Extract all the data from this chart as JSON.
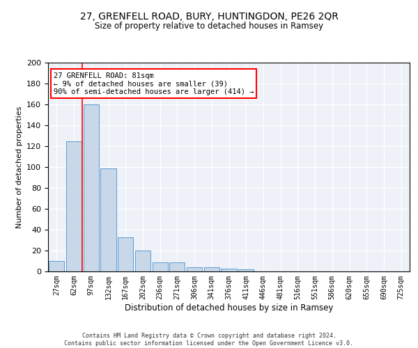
{
  "title1": "27, GRENFELL ROAD, BURY, HUNTINGDON, PE26 2QR",
  "title2": "Size of property relative to detached houses in Ramsey",
  "xlabel": "Distribution of detached houses by size in Ramsey",
  "ylabel": "Number of detached properties",
  "bar_labels": [
    "27sqm",
    "62sqm",
    "97sqm",
    "132sqm",
    "167sqm",
    "202sqm",
    "236sqm",
    "271sqm",
    "306sqm",
    "341sqm",
    "376sqm",
    "411sqm",
    "446sqm",
    "481sqm",
    "516sqm",
    "551sqm",
    "586sqm",
    "620sqm",
    "655sqm",
    "690sqm",
    "725sqm"
  ],
  "bar_heights": [
    10,
    125,
    160,
    99,
    33,
    20,
    9,
    9,
    4,
    4,
    3,
    2,
    0,
    0,
    0,
    0,
    0,
    0,
    0,
    0,
    0
  ],
  "bar_color": "#c8d8e8",
  "bar_edge_color": "#5b9bd5",
  "vline_x": 1.5,
  "vline_color": "red",
  "annotation_text": "27 GRENFELL ROAD: 81sqm\n← 9% of detached houses are smaller (39)\n90% of semi-detached houses are larger (414) →",
  "annotation_box_color": "white",
  "annotation_box_edge": "red",
  "ylim": [
    0,
    200
  ],
  "yticks": [
    0,
    20,
    40,
    60,
    80,
    100,
    120,
    140,
    160,
    180,
    200
  ],
  "footer": "Contains HM Land Registry data © Crown copyright and database right 2024.\nContains public sector information licensed under the Open Government Licence v3.0.",
  "bg_color": "#eef2f8"
}
